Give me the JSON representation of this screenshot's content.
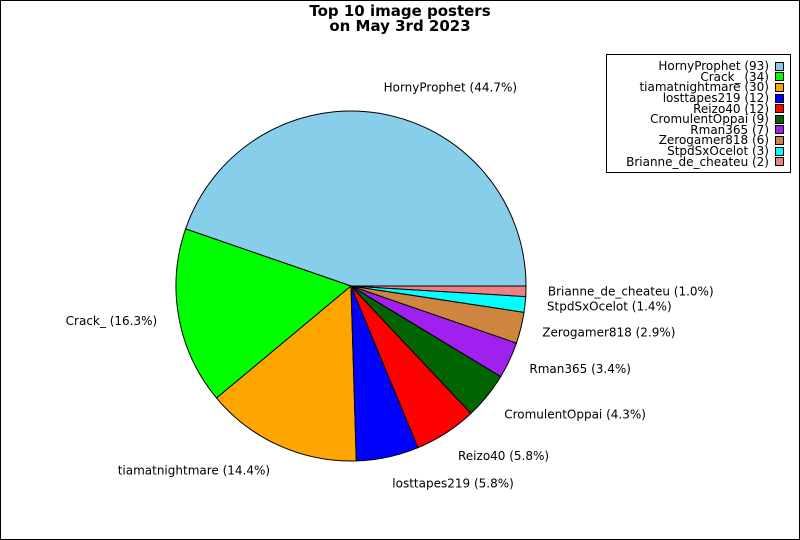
{
  "chart_data": {
    "type": "pie",
    "title": [
      "Top 10 image posters",
      "on May 3rd 2023"
    ],
    "legend_position": "top-right",
    "slices": [
      {
        "name": "HornyProphet",
        "value": 93,
        "percent_label": "44.7%",
        "color": "#87CEEB"
      },
      {
        "name": "Crack_",
        "value": 34,
        "percent_label": "16.3%",
        "color": "#00FF00"
      },
      {
        "name": "tiamatnightmare",
        "value": 30,
        "percent_label": "14.4%",
        "color": "#FFA500"
      },
      {
        "name": "losttapes219",
        "value": 12,
        "percent_label": "5.8%",
        "color": "#0000FF"
      },
      {
        "name": "Reizo40",
        "value": 12,
        "percent_label": "5.8%",
        "color": "#FF0000"
      },
      {
        "name": "CromulentOppai",
        "value": 9,
        "percent_label": "4.3%",
        "color": "#006400"
      },
      {
        "name": "Rman365",
        "value": 7,
        "percent_label": "3.4%",
        "color": "#A020F0"
      },
      {
        "name": "Zerogamer818",
        "value": 6,
        "percent_label": "2.9%",
        "color": "#CD853F"
      },
      {
        "name": "StpdSxOcelot",
        "value": 3,
        "percent_label": "1.4%",
        "color": "#00FFFF"
      },
      {
        "name": "Brianne_de_cheateu",
        "value": 2,
        "percent_label": "1.0%",
        "color": "#F08080"
      }
    ]
  }
}
